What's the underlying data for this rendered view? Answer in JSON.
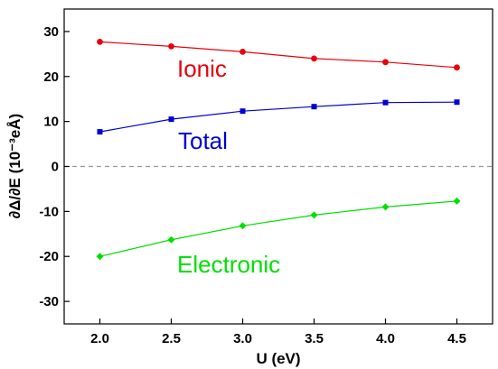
{
  "chart_data": {
    "type": "line",
    "xlabel": "U (eV)",
    "ylabel": "∂Δ/∂E (10⁻³eÅ)",
    "xlim": [
      1.75,
      4.75
    ],
    "ylim": [
      -35,
      35
    ],
    "xticks": [
      "2.0",
      "2.5",
      "3.0",
      "3.5",
      "4.0",
      "4.5"
    ],
    "yticks": [
      "30",
      "20",
      "10",
      "0",
      "-10",
      "-20",
      "-30"
    ],
    "x": [
      2.0,
      2.5,
      3.0,
      3.5,
      4.0,
      4.5
    ],
    "reference_line": {
      "y": 0,
      "style": "dashed",
      "color": "#999999"
    },
    "series": [
      {
        "name": "Ionic",
        "color": "#e8000b",
        "marker": "circle",
        "values": [
          27.7,
          26.7,
          25.5,
          24.0,
          23.2,
          22.0
        ]
      },
      {
        "name": "Total",
        "color": "#0000d0",
        "marker": "square",
        "values": [
          7.7,
          10.5,
          12.3,
          13.3,
          14.2,
          14.3
        ]
      },
      {
        "name": "Electronic",
        "color": "#00e000",
        "marker": "diamond",
        "values": [
          -20.0,
          -16.3,
          -13.2,
          -10.8,
          -9.0,
          -7.7
        ]
      }
    ]
  }
}
